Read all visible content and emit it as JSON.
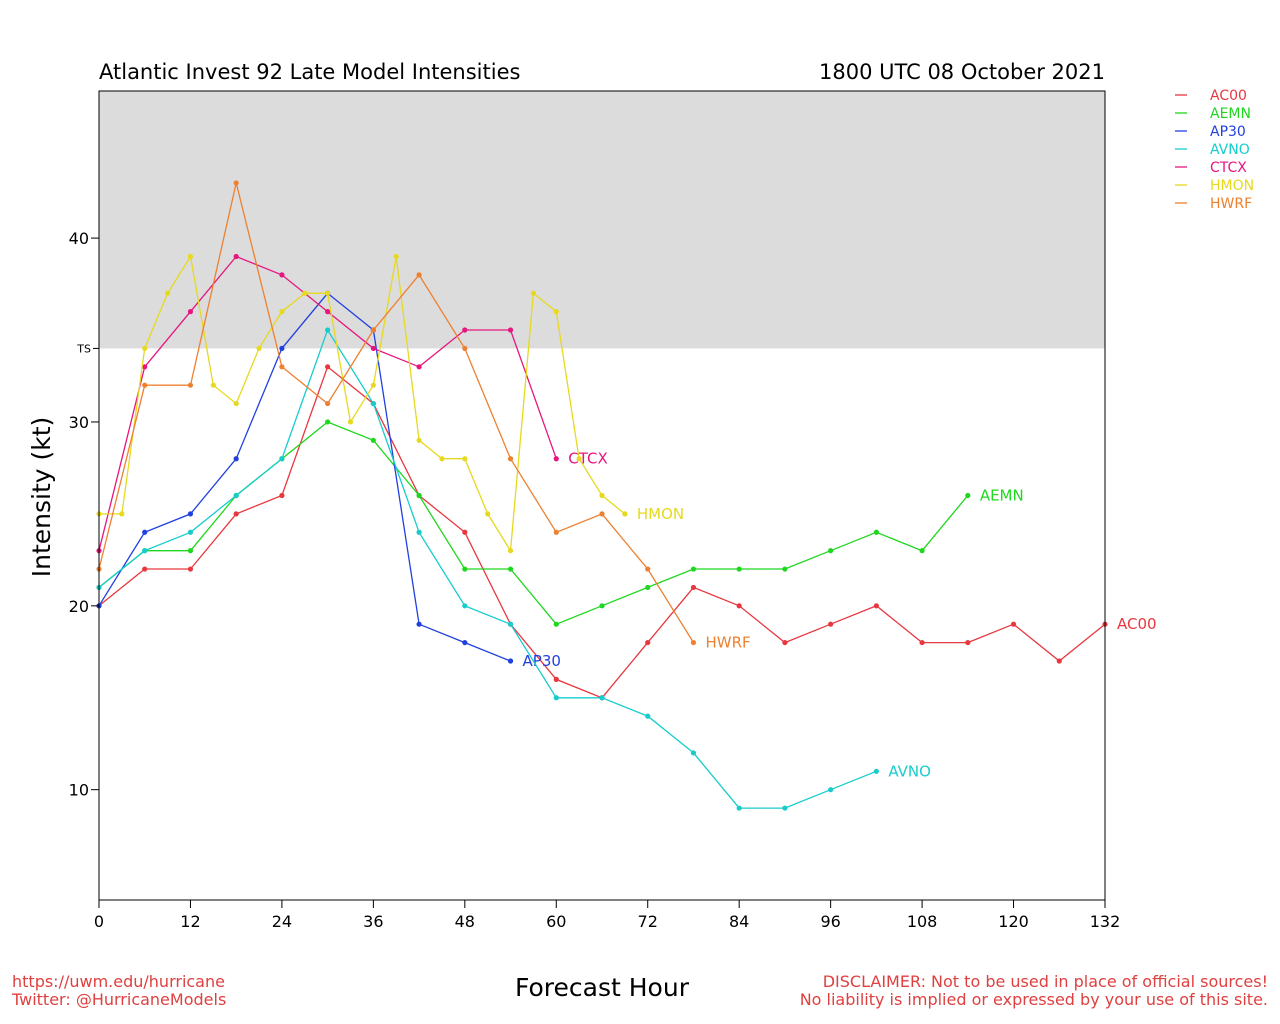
{
  "title_left": "Atlantic Invest 92 Late Model Intensities",
  "title_right": "1800 UTC 08 October 2021",
  "footer": {
    "url": "https://uwm.edu/hurricane",
    "twitter": "Twitter: @HurricaneModels",
    "disclaimer1": "DISCLAIMER: Not to be used in place of official sources!",
    "disclaimer2": "No liability is implied or expressed by your use of this site."
  },
  "chart_data": {
    "type": "line",
    "xlabel": "Forecast Hour",
    "ylabel": "Intensity (kt)",
    "xlim": [
      0,
      132
    ],
    "ylim": [
      4,
      48
    ],
    "xticks": [
      0,
      12,
      24,
      36,
      48,
      60,
      72,
      84,
      96,
      108,
      120,
      132
    ],
    "yticks": [
      10,
      20,
      30,
      40
    ],
    "ts_threshold": 34,
    "ts_label": "TS",
    "legend_position": "top-right (outside plot)",
    "series": [
      {
        "name": "AC00",
        "color": "#e8373f",
        "x": [
          0,
          6,
          12,
          18,
          24,
          30,
          36,
          42,
          48,
          54,
          60,
          66,
          72,
          78,
          84,
          90,
          96,
          102,
          108,
          114,
          120,
          126,
          132
        ],
        "y": [
          20,
          22,
          22,
          25,
          26,
          33,
          31,
          26,
          24,
          19,
          16,
          15,
          18,
          21,
          20,
          18,
          19,
          20,
          18,
          18,
          19,
          17,
          19
        ]
      },
      {
        "name": "AEMN",
        "color": "#1ed71e",
        "x": [
          0,
          6,
          12,
          18,
          24,
          30,
          36,
          42,
          48,
          54,
          60,
          66,
          72,
          78,
          84,
          90,
          96,
          102,
          108,
          114
        ],
        "y": [
          21,
          23,
          23,
          26,
          28,
          30,
          29,
          26,
          22,
          22,
          19,
          20,
          21,
          22,
          22,
          22,
          23,
          24,
          23,
          26
        ]
      },
      {
        "name": "AP30",
        "color": "#2040e0",
        "x": [
          0,
          6,
          12,
          18,
          24,
          30,
          36,
          42,
          48,
          54
        ],
        "y": [
          20,
          24,
          25,
          28,
          34,
          37,
          35,
          19,
          18,
          17
        ]
      },
      {
        "name": "AVNO",
        "color": "#18cccc",
        "x": [
          0,
          6,
          12,
          18,
          24,
          30,
          36,
          42,
          48,
          54,
          60,
          66,
          72,
          78,
          84,
          90,
          96,
          102
        ],
        "y": [
          21,
          23,
          24,
          26,
          28,
          35,
          31,
          24,
          20,
          19,
          15,
          15,
          14,
          12,
          9,
          9,
          10,
          11
        ]
      },
      {
        "name": "CTCX",
        "color": "#e8157f",
        "x": [
          0,
          6,
          12,
          18,
          24,
          30,
          36,
          42,
          48,
          54,
          60
        ],
        "y": [
          23,
          33,
          36,
          39,
          38,
          36,
          34,
          33,
          35,
          35,
          28
        ]
      },
      {
        "name": "HMON",
        "color": "#e6d91e",
        "x": [
          0,
          3,
          6,
          9,
          12,
          15,
          18,
          21,
          24,
          27,
          30,
          33,
          36,
          39,
          42,
          45,
          48,
          51,
          54,
          57,
          60,
          63,
          66,
          69
        ],
        "y": [
          25,
          25,
          34,
          37,
          39,
          32,
          31,
          34,
          36,
          37,
          37,
          30,
          32,
          39,
          29,
          28,
          28,
          25,
          23,
          37,
          36,
          28,
          26,
          25
        ]
      },
      {
        "name": "HWRF",
        "color": "#ee8030",
        "x": [
          0,
          6,
          12,
          18,
          24,
          30,
          36,
          42,
          48,
          54,
          60,
          66,
          72,
          78
        ],
        "y": [
          22,
          32,
          32,
          43,
          33,
          31,
          35,
          38,
          34,
          28,
          24,
          25,
          22,
          18
        ]
      }
    ]
  }
}
